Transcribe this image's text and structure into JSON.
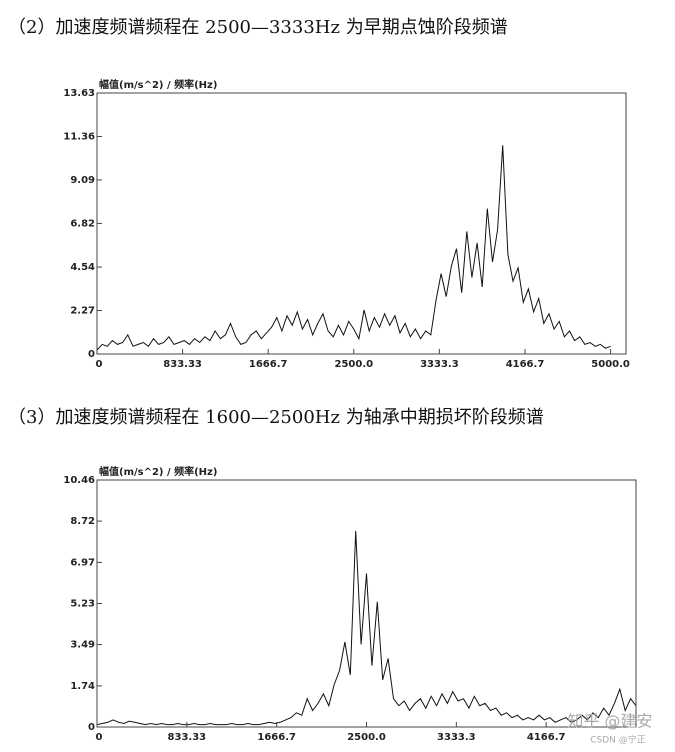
{
  "chart_data": [
    {
      "type": "line",
      "caption": "（2）加速度频谱频程在 2500—3333Hz 为早期点蚀阶段频谱",
      "y_axis_label": "幅值(m/s^2) / 频率(Hz)",
      "color": "#111111",
      "x": [
        0,
        50,
        100,
        150,
        200,
        250,
        300,
        350,
        400,
        450,
        500,
        550,
        600,
        650,
        700,
        750,
        800,
        850,
        900,
        950,
        1000,
        1050,
        1100,
        1150,
        1200,
        1250,
        1300,
        1350,
        1400,
        1450,
        1500,
        1550,
        1600,
        1650,
        1700,
        1750,
        1800,
        1850,
        1900,
        1950,
        2000,
        2050,
        2100,
        2150,
        2200,
        2250,
        2300,
        2350,
        2400,
        2450,
        2500,
        2550,
        2600,
        2650,
        2700,
        2750,
        2800,
        2850,
        2900,
        2950,
        3000,
        3050,
        3100,
        3150,
        3200,
        3250,
        3300,
        3350,
        3400,
        3450,
        3500,
        3550,
        3600,
        3650,
        3700,
        3750,
        3800,
        3850,
        3900,
        3950,
        4000,
        4050,
        4100,
        4150,
        4200,
        4250,
        4300,
        4350,
        4400,
        4450,
        4500,
        4550,
        4600,
        4650,
        4700,
        4750,
        4800,
        4850,
        4900,
        4950,
        5000
      ],
      "values": [
        0.2,
        0.5,
        0.4,
        0.7,
        0.5,
        0.6,
        1.0,
        0.4,
        0.5,
        0.6,
        0.4,
        0.8,
        0.5,
        0.6,
        0.9,
        0.5,
        0.6,
        0.7,
        0.5,
        0.8,
        0.6,
        0.9,
        0.7,
        1.2,
        0.8,
        1.0,
        1.6,
        0.9,
        0.5,
        0.6,
        1.0,
        1.2,
        0.8,
        1.1,
        1.4,
        1.9,
        1.2,
        2.0,
        1.5,
        2.2,
        1.3,
        1.8,
        1.0,
        1.6,
        2.1,
        1.2,
        0.9,
        1.5,
        1.0,
        1.7,
        1.3,
        0.8,
        2.3,
        1.2,
        1.9,
        1.4,
        2.1,
        1.5,
        2.0,
        1.1,
        1.6,
        0.9,
        1.3,
        0.8,
        1.2,
        1.0,
        2.8,
        4.2,
        3.0,
        4.6,
        5.5,
        3.2,
        6.4,
        4.0,
        5.8,
        3.5,
        7.6,
        4.8,
        6.5,
        10.9,
        5.2,
        3.8,
        4.5,
        2.7,
        3.4,
        2.2,
        2.9,
        1.6,
        2.1,
        1.3,
        1.7,
        0.9,
        1.2,
        0.7,
        0.9,
        0.5,
        0.6,
        0.4,
        0.5,
        0.3,
        0.4
      ],
      "xlim": [
        0,
        5150
      ],
      "ylim": [
        0,
        13.63
      ],
      "xticks": [
        0,
        833.33,
        1666.7,
        {
          "value": 2500,
          "label": "2500.0"
        },
        3333.3,
        4166.7,
        {
          "value": 5000,
          "label": "5000.0"
        }
      ],
      "yticks": [
        0,
        2.27,
        4.54,
        6.82,
        9.09,
        11.36,
        13.63
      ]
    },
    {
      "type": "line",
      "caption": "（3）加速度频谱频程在 1600—2500Hz 为轴承中期损坏阶段频谱",
      "y_axis_label": "幅值(m/s^2) / 频率(Hz)",
      "color": "#111111",
      "x": [
        0,
        50,
        100,
        150,
        200,
        250,
        300,
        350,
        400,
        450,
        500,
        550,
        600,
        650,
        700,
        750,
        800,
        850,
        900,
        950,
        1000,
        1050,
        1100,
        1150,
        1200,
        1250,
        1300,
        1350,
        1400,
        1450,
        1500,
        1550,
        1600,
        1650,
        1700,
        1750,
        1800,
        1850,
        1900,
        1950,
        2000,
        2050,
        2100,
        2150,
        2200,
        2250,
        2300,
        2350,
        2400,
        2450,
        2500,
        2550,
        2600,
        2650,
        2700,
        2750,
        2800,
        2850,
        2900,
        2950,
        3000,
        3050,
        3100,
        3150,
        3200,
        3250,
        3300,
        3350,
        3400,
        3450,
        3500,
        3550,
        3600,
        3650,
        3700,
        3750,
        3800,
        3850,
        3900,
        3950,
        4000,
        4050,
        4100,
        4150,
        4200,
        4250,
        4300,
        4350,
        4400,
        4450,
        4500,
        4550,
        4600,
        4650,
        4700,
        4750,
        4800,
        4850,
        4900,
        4950,
        5000
      ],
      "values": [
        0.1,
        0.15,
        0.2,
        0.3,
        0.2,
        0.15,
        0.25,
        0.2,
        0.15,
        0.1,
        0.15,
        0.1,
        0.15,
        0.1,
        0.1,
        0.15,
        0.1,
        0.1,
        0.15,
        0.1,
        0.1,
        0.15,
        0.1,
        0.1,
        0.1,
        0.15,
        0.1,
        0.1,
        0.15,
        0.1,
        0.1,
        0.15,
        0.2,
        0.15,
        0.2,
        0.3,
        0.4,
        0.6,
        0.5,
        1.2,
        0.7,
        1.0,
        1.4,
        0.9,
        1.8,
        2.4,
        3.6,
        2.2,
        8.3,
        3.5,
        6.5,
        2.6,
        5.3,
        2.0,
        2.9,
        1.2,
        0.9,
        1.1,
        0.7,
        1.0,
        1.2,
        0.8,
        1.3,
        0.9,
        1.4,
        1.0,
        1.5,
        1.1,
        1.2,
        0.8,
        1.3,
        0.9,
        1.0,
        0.7,
        0.8,
        0.5,
        0.6,
        0.4,
        0.5,
        0.3,
        0.4,
        0.3,
        0.5,
        0.3,
        0.4,
        0.2,
        0.3,
        0.4,
        0.2,
        0.3,
        0.5,
        0.3,
        0.6,
        0.4,
        0.8,
        0.5,
        1.0,
        1.6,
        0.7,
        1.2,
        0.9
      ],
      "xlim": [
        0,
        5000
      ],
      "ylim": [
        0,
        10.46
      ],
      "xticks": [
        0,
        833.33,
        1666.7,
        {
          "value": 2500,
          "label": "2500.0"
        },
        3333.3,
        4166.7
      ],
      "yticks": [
        0,
        1.74,
        3.49,
        5.23,
        6.97,
        8.72,
        10.46
      ]
    }
  ],
  "watermark": [
    "知乎 @建安",
    "CSDN @宁正"
  ]
}
